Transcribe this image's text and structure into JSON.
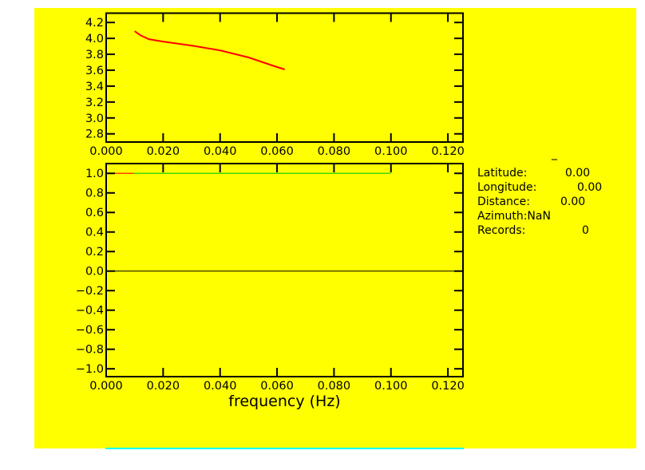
{
  "colors": {
    "background": "#ffff00",
    "axis": "#000000",
    "curve": "#ff0000",
    "ref_line_low": "#ff0000",
    "ref_line_high": "#00cc00",
    "scrollbar": "#00ffff"
  },
  "info": {
    "title": "_",
    "latitude_label": "Latitude:",
    "latitude_value": "0.00",
    "longitude_label": "Longitude:",
    "longitude_value": "0.00",
    "distance_label": "Distance:",
    "distance_value": "0.00",
    "azimuth_label": "Azimuth:NaN",
    "records_label": "Records:",
    "records_value": "0"
  },
  "chart_data": [
    {
      "type": "line",
      "xlabel": "",
      "ylabel": "",
      "xlim": [
        0.0,
        0.1253
      ],
      "ylim": [
        2.697,
        4.317
      ],
      "xticks": [
        "0.000",
        "0.020",
        "0.040",
        "0.060",
        "0.080",
        "0.100",
        "0.120"
      ],
      "yticks": [
        "2.8",
        "3.0",
        "3.2",
        "3.4",
        "3.6",
        "3.8",
        "4.0",
        "4.2"
      ],
      "grid": false,
      "series": [
        {
          "x": [
            0.01,
            0.012,
            0.015,
            0.02,
            0.03,
            0.04,
            0.05,
            0.06,
            0.0627
          ],
          "y": [
            4.09,
            4.04,
            3.99,
            3.96,
            3.91,
            3.85,
            3.76,
            3.64,
            3.61
          ]
        }
      ]
    },
    {
      "type": "line",
      "xlabel": "frequency (Hz)",
      "ylabel": "",
      "xlim": [
        0.0,
        0.1253
      ],
      "ylim": [
        -1.08,
        1.1
      ],
      "xticks": [
        "0.000",
        "0.020",
        "0.040",
        "0.060",
        "0.080",
        "0.100",
        "0.120"
      ],
      "yticks": [
        "-1.0",
        "-0.8",
        "-0.6",
        "-0.4",
        "-0.2",
        "0.0",
        "0.2",
        "0.4",
        "0.6",
        "0.8",
        "1.0"
      ],
      "grid": false,
      "series": [
        {
          "x": [
            0.0,
            0.0097
          ],
          "y": [
            1.0,
            1.0
          ],
          "color": "#ff0000"
        },
        {
          "x": [
            0.0097,
            0.1
          ],
          "y": [
            1.0,
            1.0
          ],
          "color": "#00cc00"
        },
        {
          "x": [
            0.0,
            0.1253
          ],
          "y": [
            0.0,
            0.0
          ],
          "color": "#000000"
        }
      ]
    }
  ]
}
